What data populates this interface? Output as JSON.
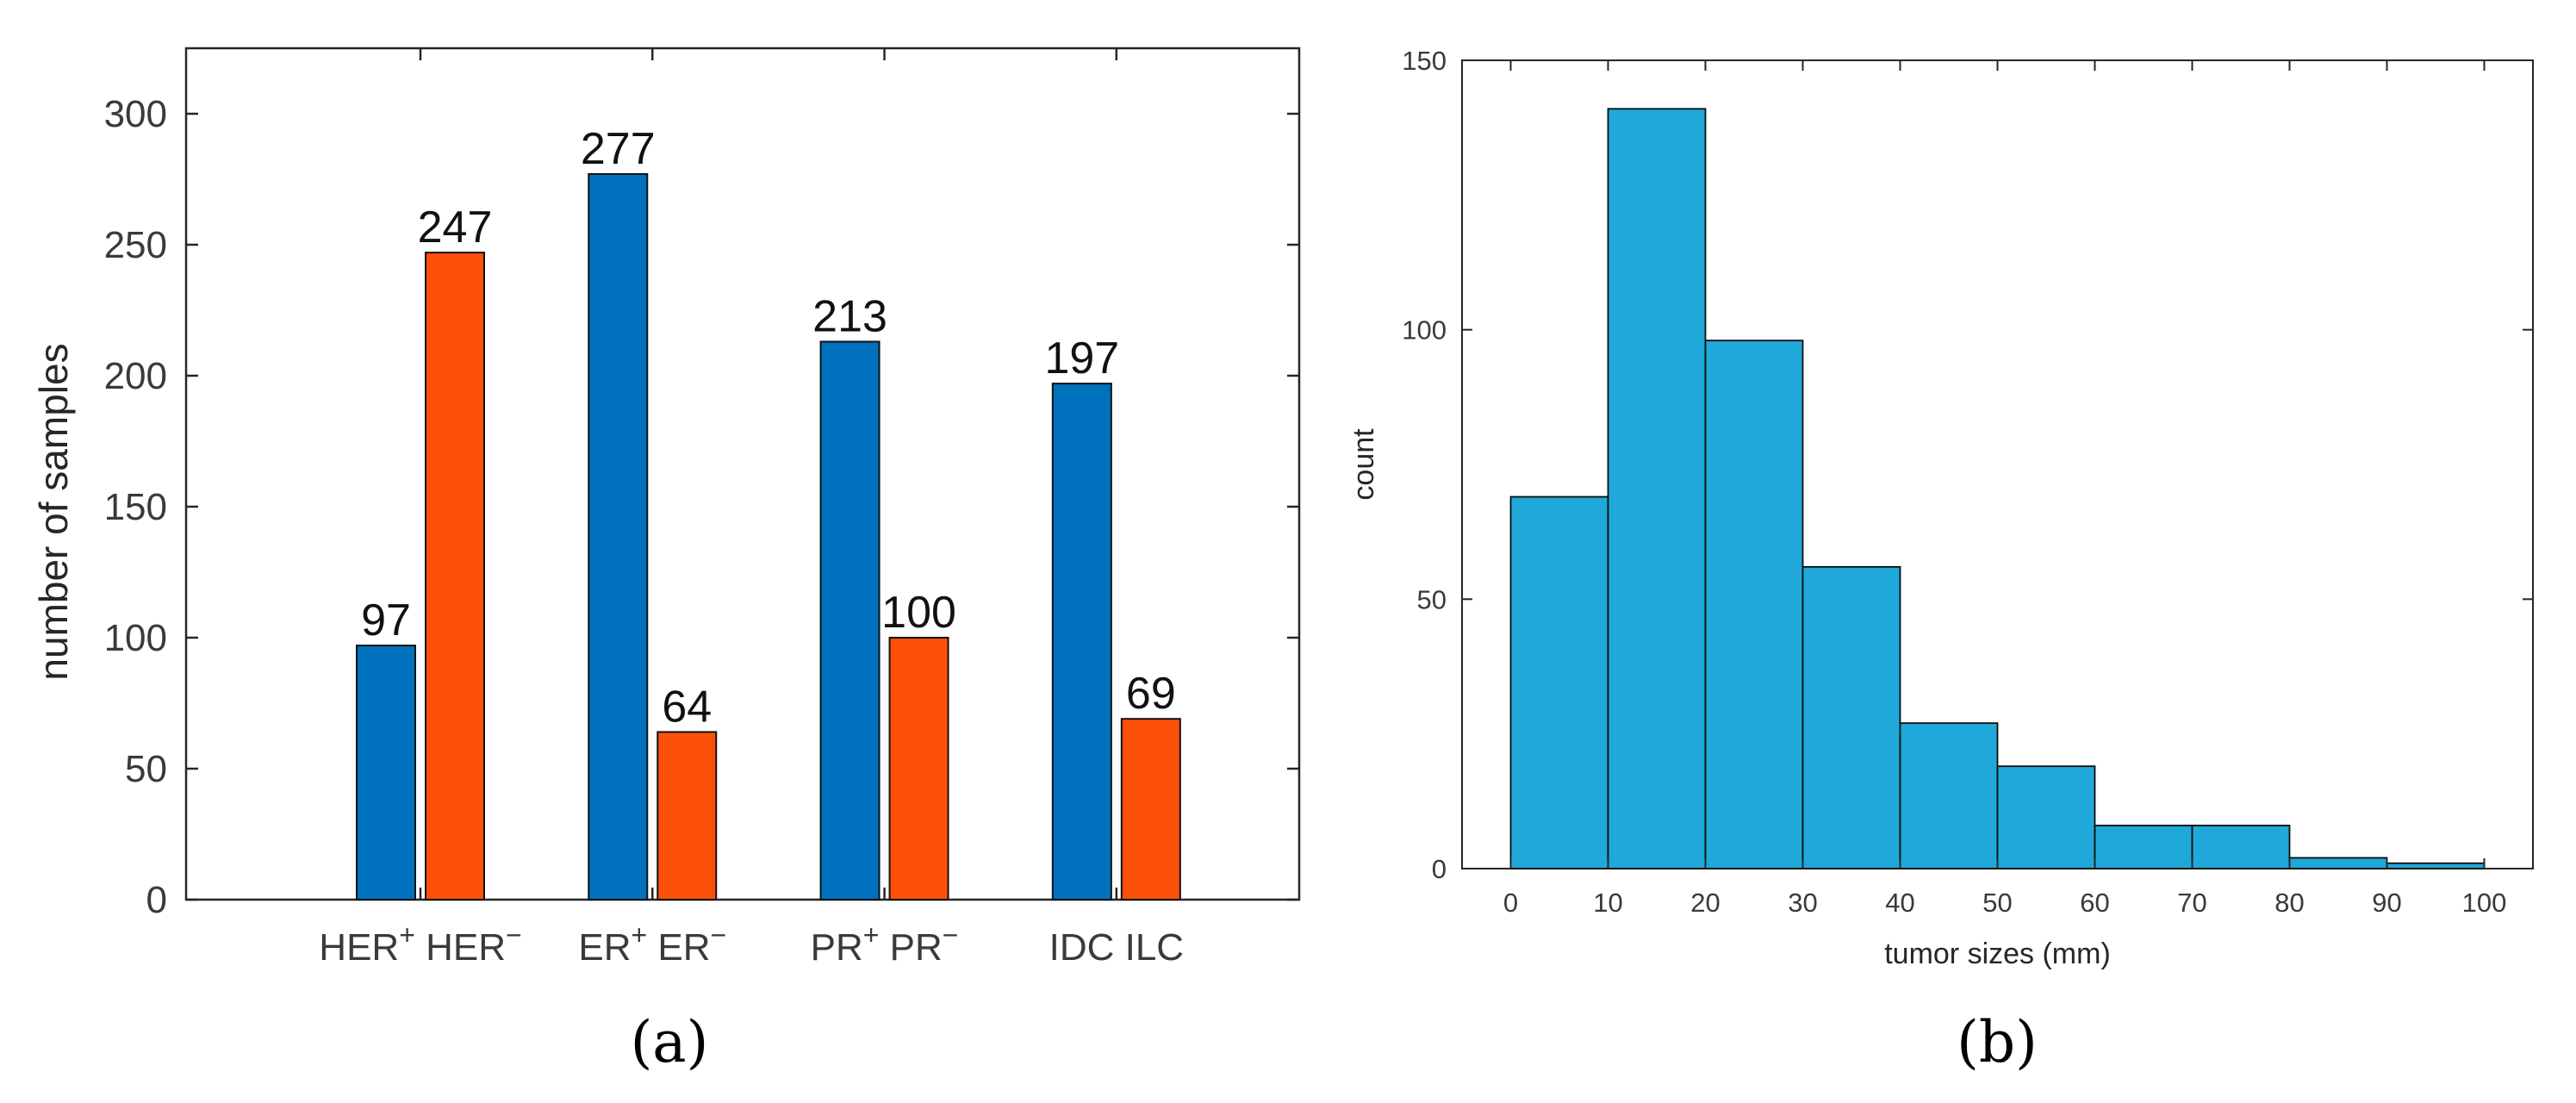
{
  "figure": {
    "panel_a_label": "(a)",
    "panel_b_label": "(b)"
  },
  "chart_data": [
    {
      "type": "bar",
      "panel": "a",
      "title": "",
      "ylabel": "number of samples",
      "xlabel": "",
      "ylim": [
        0,
        325
      ],
      "yticks": [
        0,
        50,
        100,
        150,
        200,
        250,
        300
      ],
      "grid": false,
      "groups": [
        {
          "label": "HER⁺ HER⁻",
          "positive": "HER",
          "negative": "HER",
          "superscripts": true
        },
        {
          "label": "ER⁺ ER⁻",
          "positive": "ER",
          "negative": "ER",
          "superscripts": true
        },
        {
          "label": "PR⁺ PR⁻",
          "positive": "PR",
          "negative": "PR",
          "superscripts": true
        },
        {
          "label": "IDC ILC",
          "positive": "IDC",
          "negative": "ILC",
          "superscripts": false
        }
      ],
      "series": [
        {
          "name": "positive",
          "color": "#0072bd",
          "values": [
            97,
            277,
            213,
            197
          ]
        },
        {
          "name": "negative",
          "color": "#fc4f08",
          "values": [
            247,
            64,
            100,
            69
          ]
        }
      ]
    },
    {
      "type": "bar",
      "subtype": "histogram",
      "panel": "b",
      "title": "",
      "xlabel": "tumor sizes (mm)",
      "ylabel": "count",
      "xlim": [
        -5,
        105
      ],
      "ylim": [
        0,
        150
      ],
      "xticks": [
        0,
        10,
        20,
        30,
        40,
        50,
        60,
        70,
        80,
        90,
        100
      ],
      "yticks": [
        0,
        50,
        100,
        150
      ],
      "grid": false,
      "color": "#1fa8d9",
      "bin_edges": [
        0,
        10,
        20,
        30,
        40,
        50,
        60,
        70,
        80,
        90,
        100
      ],
      "counts": [
        69,
        141,
        98,
        56,
        27,
        19,
        8,
        8,
        2,
        1
      ]
    }
  ]
}
